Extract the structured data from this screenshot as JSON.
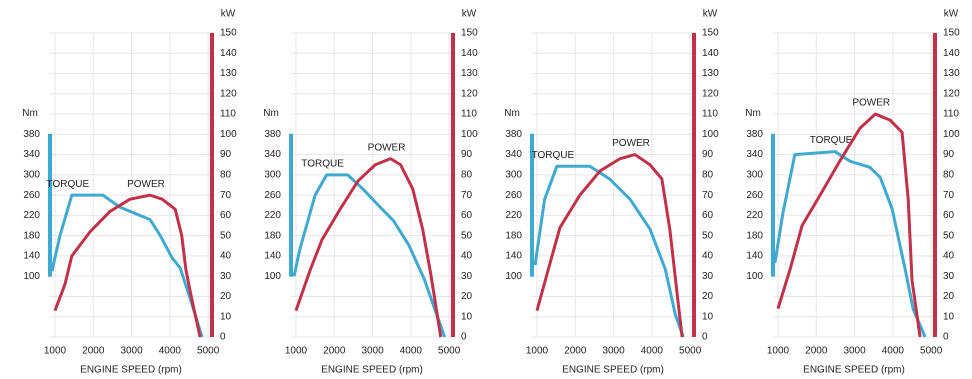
{
  "chart_data": [
    {
      "type": "line",
      "xlabel": "ENGINE SPEED (rpm)",
      "ylabel": "Nm",
      "y2label": "kW",
      "xlim": [
        870,
        5100
      ],
      "xticks": [
        1000,
        2000,
        3000,
        4000,
        5000
      ],
      "ylim": [
        -20,
        580
      ],
      "yticks": [
        100,
        140,
        180,
        220,
        260,
        300,
        340,
        380
      ],
      "y2lim": [
        0,
        150
      ],
      "y2ticks": [
        0,
        10,
        20,
        30,
        40,
        50,
        60,
        70,
        80,
        90,
        100,
        110,
        120,
        130,
        140,
        150
      ],
      "series": [
        {
          "name": "TORQUE",
          "color": "#3fa9d0",
          "x": [
            920,
            1130,
            1440,
            2250,
            2700,
            3480,
            3750,
            4060,
            4270,
            4530,
            4840
          ],
          "values": [
            110,
            180,
            260,
            260,
            236,
            212,
            180,
            136,
            116,
            56,
            -20
          ]
        },
        {
          "name": "POWER",
          "color": "#c0314a",
          "axis": "y2",
          "x": [
            1000,
            1260,
            1440,
            1920,
            2440,
            2960,
            3480,
            3800,
            4140,
            4310,
            4420,
            4580,
            4790
          ],
          "values": [
            13,
            26,
            40,
            52,
            62,
            68,
            70,
            68,
            63,
            50,
            33,
            18,
            0
          ]
        }
      ]
    },
    {
      "type": "line",
      "xlabel": "ENGINE SPEED (rpm)",
      "ylabel": "Nm",
      "y2label": "kW",
      "xlim": [
        870,
        5100
      ],
      "xticks": [
        1000,
        2000,
        3000,
        4000,
        5000
      ],
      "ylim": [
        -20,
        580
      ],
      "yticks": [
        100,
        140,
        180,
        220,
        260,
        300,
        340,
        380
      ],
      "y2lim": [
        0,
        150
      ],
      "y2ticks": [
        0,
        10,
        20,
        30,
        40,
        50,
        60,
        70,
        80,
        90,
        100,
        110,
        120,
        130,
        140,
        150
      ],
      "series": [
        {
          "name": "TORQUE",
          "color": "#3fa9d0",
          "x": [
            950,
            1100,
            1500,
            1800,
            2350,
            2750,
            3100,
            3550,
            3950,
            4350,
            4880
          ],
          "values": [
            100,
            153,
            260,
            300,
            300,
            272,
            244,
            209,
            161,
            94,
            -20
          ]
        },
        {
          "name": "POWER",
          "color": "#c0314a",
          "axis": "y2",
          "x": [
            1000,
            1370,
            1680,
            2150,
            2620,
            3070,
            3470,
            3730,
            4050,
            4310,
            4520,
            4780
          ],
          "values": [
            13,
            33,
            48,
            63,
            77,
            85,
            88,
            85,
            73,
            53,
            31,
            0
          ]
        }
      ]
    },
    {
      "type": "line",
      "xlabel": "ENGINE SPEED (rpm)",
      "ylabel": "Nm",
      "y2label": "kW",
      "xlim": [
        870,
        5100
      ],
      "xticks": [
        1000,
        2000,
        3000,
        4000,
        5000
      ],
      "ylim": [
        -20,
        580
      ],
      "yticks": [
        100,
        140,
        180,
        220,
        260,
        300,
        340,
        380
      ],
      "y2lim": [
        0,
        150
      ],
      "y2ticks": [
        0,
        10,
        20,
        30,
        40,
        50,
        60,
        70,
        80,
        90,
        100,
        110,
        120,
        130,
        140,
        150
      ],
      "series": [
        {
          "name": "TORQUE",
          "color": "#3fa9d0",
          "x": [
            950,
            1200,
            1520,
            2380,
            2910,
            3430,
            3950,
            4350,
            4610,
            4820
          ],
          "values": [
            122,
            252,
            317,
            317,
            291,
            252,
            193,
            114,
            25,
            -20
          ]
        },
        {
          "name": "POWER",
          "color": "#c0314a",
          "axis": "y2",
          "x": [
            1000,
            1290,
            1600,
            2120,
            2650,
            3170,
            3560,
            3950,
            4260,
            4470,
            4680,
            4790
          ],
          "values": [
            13,
            33,
            54,
            70,
            82,
            88,
            90,
            85,
            78,
            53,
            18,
            0
          ]
        }
      ]
    },
    {
      "type": "line",
      "xlabel": "ENGINE SPEED (rpm)",
      "ylabel": "Nm",
      "y2label": "kW",
      "xlim": [
        870,
        5100
      ],
      "xticks": [
        1000,
        2000,
        3000,
        4000,
        5000
      ],
      "ylim": [
        -20,
        580
      ],
      "yticks": [
        100,
        140,
        180,
        220,
        260,
        300,
        340,
        380
      ],
      "y2lim": [
        0,
        150
      ],
      "y2ticks": [
        0,
        10,
        20,
        30,
        40,
        50,
        60,
        70,
        80,
        90,
        100,
        110,
        120,
        130,
        140,
        150
      ],
      "series": [
        {
          "name": "TORQUE",
          "color": "#3fa9d0",
          "x": [
            920,
            1130,
            1440,
            2490,
            2880,
            3400,
            3670,
            3980,
            4320,
            4530,
            4840
          ],
          "values": [
            126,
            225,
            340,
            346,
            327,
            315,
            295,
            233,
            114,
            35,
            -20
          ]
        },
        {
          "name": "POWER",
          "color": "#c0314a",
          "axis": "y2",
          "x": [
            1000,
            1310,
            1630,
            2100,
            2620,
            3140,
            3540,
            3930,
            4240,
            4400,
            4500,
            4710
          ],
          "values": [
            14,
            33,
            55,
            70,
            87,
            103,
            110,
            107,
            101,
            68,
            28,
            0
          ]
        }
      ]
    }
  ]
}
